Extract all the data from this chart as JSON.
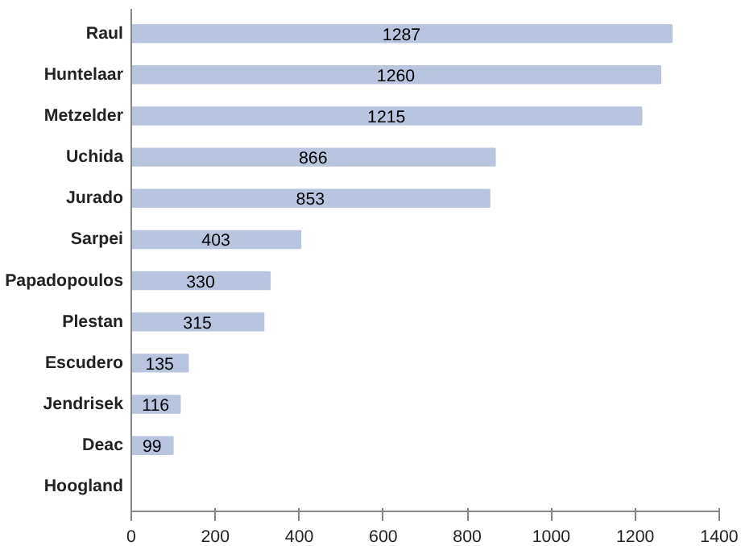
{
  "chart_data": {
    "type": "bar",
    "orientation": "horizontal",
    "categories": [
      "Raul",
      "Huntelaar",
      "Metzelder",
      "Uchida",
      "Jurado",
      "Sarpei",
      "Papadopoulos",
      "Plestan",
      "Escudero",
      "Jendrisek",
      "Deac",
      "Hoogland"
    ],
    "values": [
      1287,
      1260,
      1215,
      866,
      853,
      403,
      330,
      315,
      135,
      116,
      99,
      null
    ],
    "value_labels": [
      "1287",
      "1260",
      "1215",
      "866",
      "853",
      "403",
      "330",
      "315",
      "135",
      "116",
      "99",
      null
    ],
    "color": "#b9c4de",
    "xlim": [
      0,
      1400
    ],
    "xticks": [
      0,
      200,
      400,
      600,
      800,
      1000,
      1200,
      1400
    ],
    "grid": false
  }
}
